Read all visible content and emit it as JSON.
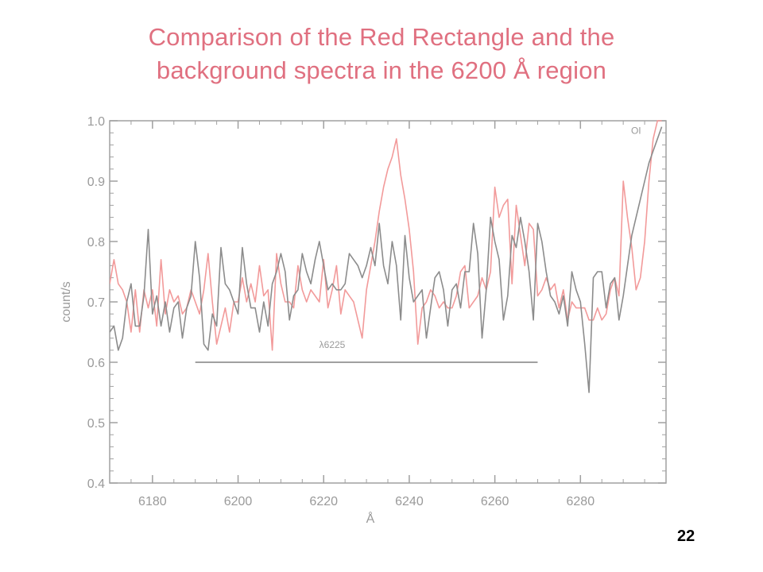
{
  "slide": {
    "title_line1": "Comparison of the Red Rectangle and the",
    "title_line2": "background spectra in the 6200 Å region",
    "page_number": "22"
  },
  "chart_data": {
    "type": "line",
    "xlabel": "Å",
    "ylabel": "count/s",
    "xlim": [
      6170,
      6300
    ],
    "ylim": [
      0.4,
      1.0
    ],
    "x_ticks": [
      6180,
      6200,
      6220,
      6240,
      6260,
      6280
    ],
    "y_ticks": [
      0.4,
      0.5,
      0.6,
      0.7,
      0.8,
      0.9,
      1.0
    ],
    "grid": false,
    "colors": {
      "red_rectangle": "#f29a9a",
      "background": "#8c8c8c",
      "axis": "#a0a0a0"
    },
    "annotations": [
      {
        "text": "OI",
        "x": 6293,
        "y": 0.985
      },
      {
        "text": "λ6225",
        "x": 6222,
        "y": 0.63
      }
    ],
    "band": {
      "x_start": 6190,
      "x_end": 6270,
      "y": 0.6
    },
    "series": [
      {
        "color": "#f29a9a",
        "x": [
          6170,
          6171,
          6172,
          6173,
          6174,
          6175,
          6176,
          6177,
          6178,
          6179,
          6180,
          6181,
          6182,
          6183,
          6184,
          6185,
          6186,
          6187,
          6188,
          6189,
          6190,
          6191,
          6192,
          6193,
          6194,
          6195,
          6196,
          6197,
          6198,
          6199,
          6200,
          6201,
          6202,
          6203,
          6204,
          6205,
          6206,
          6207,
          6208,
          6209,
          6210,
          6211,
          6212,
          6213,
          6214,
          6215,
          6216,
          6217,
          6218,
          6219,
          6220,
          6221,
          6222,
          6223,
          6224,
          6225,
          6226,
          6227,
          6228,
          6229,
          6230,
          6231,
          6232,
          6233,
          6234,
          6235,
          6236,
          6237,
          6238,
          6239,
          6240,
          6241,
          6242,
          6243,
          6244,
          6245,
          6246,
          6247,
          6248,
          6249,
          6250,
          6251,
          6252,
          6253,
          6254,
          6255,
          6256,
          6257,
          6258,
          6259,
          6260,
          6261,
          6262,
          6263,
          6264,
          6265,
          6266,
          6267,
          6268,
          6269,
          6270,
          6271,
          6272,
          6273,
          6274,
          6275,
          6276,
          6277,
          6278,
          6279,
          6280,
          6281,
          6282,
          6283,
          6284,
          6285,
          6286,
          6287,
          6288,
          6289,
          6290,
          6291,
          6292,
          6293,
          6294,
          6295,
          6296,
          6297,
          6298,
          6299
        ],
        "y": [
          0.73,
          0.77,
          0.73,
          0.72,
          0.7,
          0.65,
          0.72,
          0.65,
          0.72,
          0.69,
          0.72,
          0.66,
          0.77,
          0.68,
          0.72,
          0.7,
          0.71,
          0.68,
          0.69,
          0.72,
          0.7,
          0.68,
          0.72,
          0.78,
          0.7,
          0.63,
          0.66,
          0.69,
          0.65,
          0.7,
          0.7,
          0.74,
          0.7,
          0.73,
          0.7,
          0.76,
          0.71,
          0.72,
          0.62,
          0.78,
          0.73,
          0.7,
          0.7,
          0.69,
          0.76,
          0.72,
          0.7,
          0.72,
          0.71,
          0.7,
          0.77,
          0.69,
          0.72,
          0.76,
          0.68,
          0.72,
          0.71,
          0.7,
          0.67,
          0.64,
          0.72,
          0.76,
          0.8,
          0.85,
          0.89,
          0.92,
          0.94,
          0.97,
          0.91,
          0.87,
          0.82,
          0.75,
          0.63,
          0.69,
          0.7,
          0.72,
          0.71,
          0.69,
          0.7,
          0.69,
          0.69,
          0.71,
          0.75,
          0.76,
          0.69,
          0.7,
          0.71,
          0.74,
          0.72,
          0.75,
          0.89,
          0.84,
          0.86,
          0.87,
          0.73,
          0.86,
          0.81,
          0.76,
          0.83,
          0.82,
          0.71,
          0.72,
          0.74,
          0.72,
          0.73,
          0.69,
          0.72,
          0.67,
          0.7,
          0.69,
          0.69,
          0.69,
          0.67,
          0.67,
          0.69,
          0.67,
          0.68,
          0.72,
          0.74,
          0.71,
          0.9,
          0.84,
          0.79,
          0.72,
          0.74,
          0.8,
          0.9,
          0.97,
          1.0,
          1.0
        ]
      },
      {
        "color": "#8c8c8c",
        "x": [
          6170,
          6171,
          6172,
          6173,
          6174,
          6175,
          6176,
          6177,
          6178,
          6179,
          6180,
          6181,
          6182,
          6183,
          6184,
          6185,
          6186,
          6187,
          6188,
          6189,
          6190,
          6191,
          6192,
          6193,
          6194,
          6195,
          6196,
          6197,
          6198,
          6199,
          6200,
          6201,
          6202,
          6203,
          6204,
          6205,
          6206,
          6207,
          6208,
          6209,
          6210,
          6211,
          6212,
          6213,
          6214,
          6215,
          6216,
          6217,
          6218,
          6219,
          6220,
          6221,
          6222,
          6223,
          6224,
          6225,
          6226,
          6227,
          6228,
          6229,
          6230,
          6231,
          6232,
          6233,
          6234,
          6235,
          6236,
          6237,
          6238,
          6239,
          6240,
          6241,
          6242,
          6243,
          6244,
          6245,
          6246,
          6247,
          6248,
          6249,
          6250,
          6251,
          6252,
          6253,
          6254,
          6255,
          6256,
          6257,
          6258,
          6259,
          6260,
          6261,
          6262,
          6263,
          6264,
          6265,
          6266,
          6267,
          6268,
          6269,
          6270,
          6271,
          6272,
          6273,
          6274,
          6275,
          6276,
          6277,
          6278,
          6279,
          6280,
          6281,
          6282,
          6283,
          6284,
          6285,
          6286,
          6287,
          6288,
          6289,
          6290,
          6291,
          6292,
          6293,
          6294,
          6295,
          6296,
          6297,
          6298,
          6299
        ],
        "y": [
          0.65,
          0.66,
          0.62,
          0.64,
          0.7,
          0.73,
          0.66,
          0.66,
          0.71,
          0.82,
          0.68,
          0.71,
          0.66,
          0.7,
          0.65,
          0.69,
          0.7,
          0.64,
          0.69,
          0.71,
          0.8,
          0.74,
          0.63,
          0.62,
          0.68,
          0.66,
          0.79,
          0.73,
          0.72,
          0.7,
          0.68,
          0.79,
          0.73,
          0.69,
          0.69,
          0.65,
          0.7,
          0.66,
          0.73,
          0.75,
          0.78,
          0.75,
          0.67,
          0.71,
          0.72,
          0.78,
          0.75,
          0.73,
          0.77,
          0.8,
          0.76,
          0.72,
          0.73,
          0.72,
          0.72,
          0.73,
          0.78,
          0.77,
          0.76,
          0.74,
          0.76,
          0.79,
          0.76,
          0.83,
          0.76,
          0.73,
          0.8,
          0.76,
          0.67,
          0.81,
          0.74,
          0.7,
          0.71,
          0.72,
          0.64,
          0.69,
          0.74,
          0.75,
          0.72,
          0.66,
          0.72,
          0.73,
          0.69,
          0.75,
          0.75,
          0.83,
          0.78,
          0.64,
          0.72,
          0.84,
          0.8,
          0.77,
          0.67,
          0.71,
          0.81,
          0.79,
          0.84,
          0.8,
          0.75,
          0.67,
          0.83,
          0.8,
          0.75,
          0.71,
          0.7,
          0.68,
          0.71,
          0.66,
          0.75,
          0.72,
          0.7,
          0.63,
          0.55,
          0.74,
          0.75,
          0.75,
          0.69,
          0.73,
          0.74,
          0.67,
          0.71,
          0.76,
          0.81,
          0.84,
          0.87,
          0.9,
          0.93,
          0.95,
          0.97,
          0.99
        ]
      }
    ]
  }
}
